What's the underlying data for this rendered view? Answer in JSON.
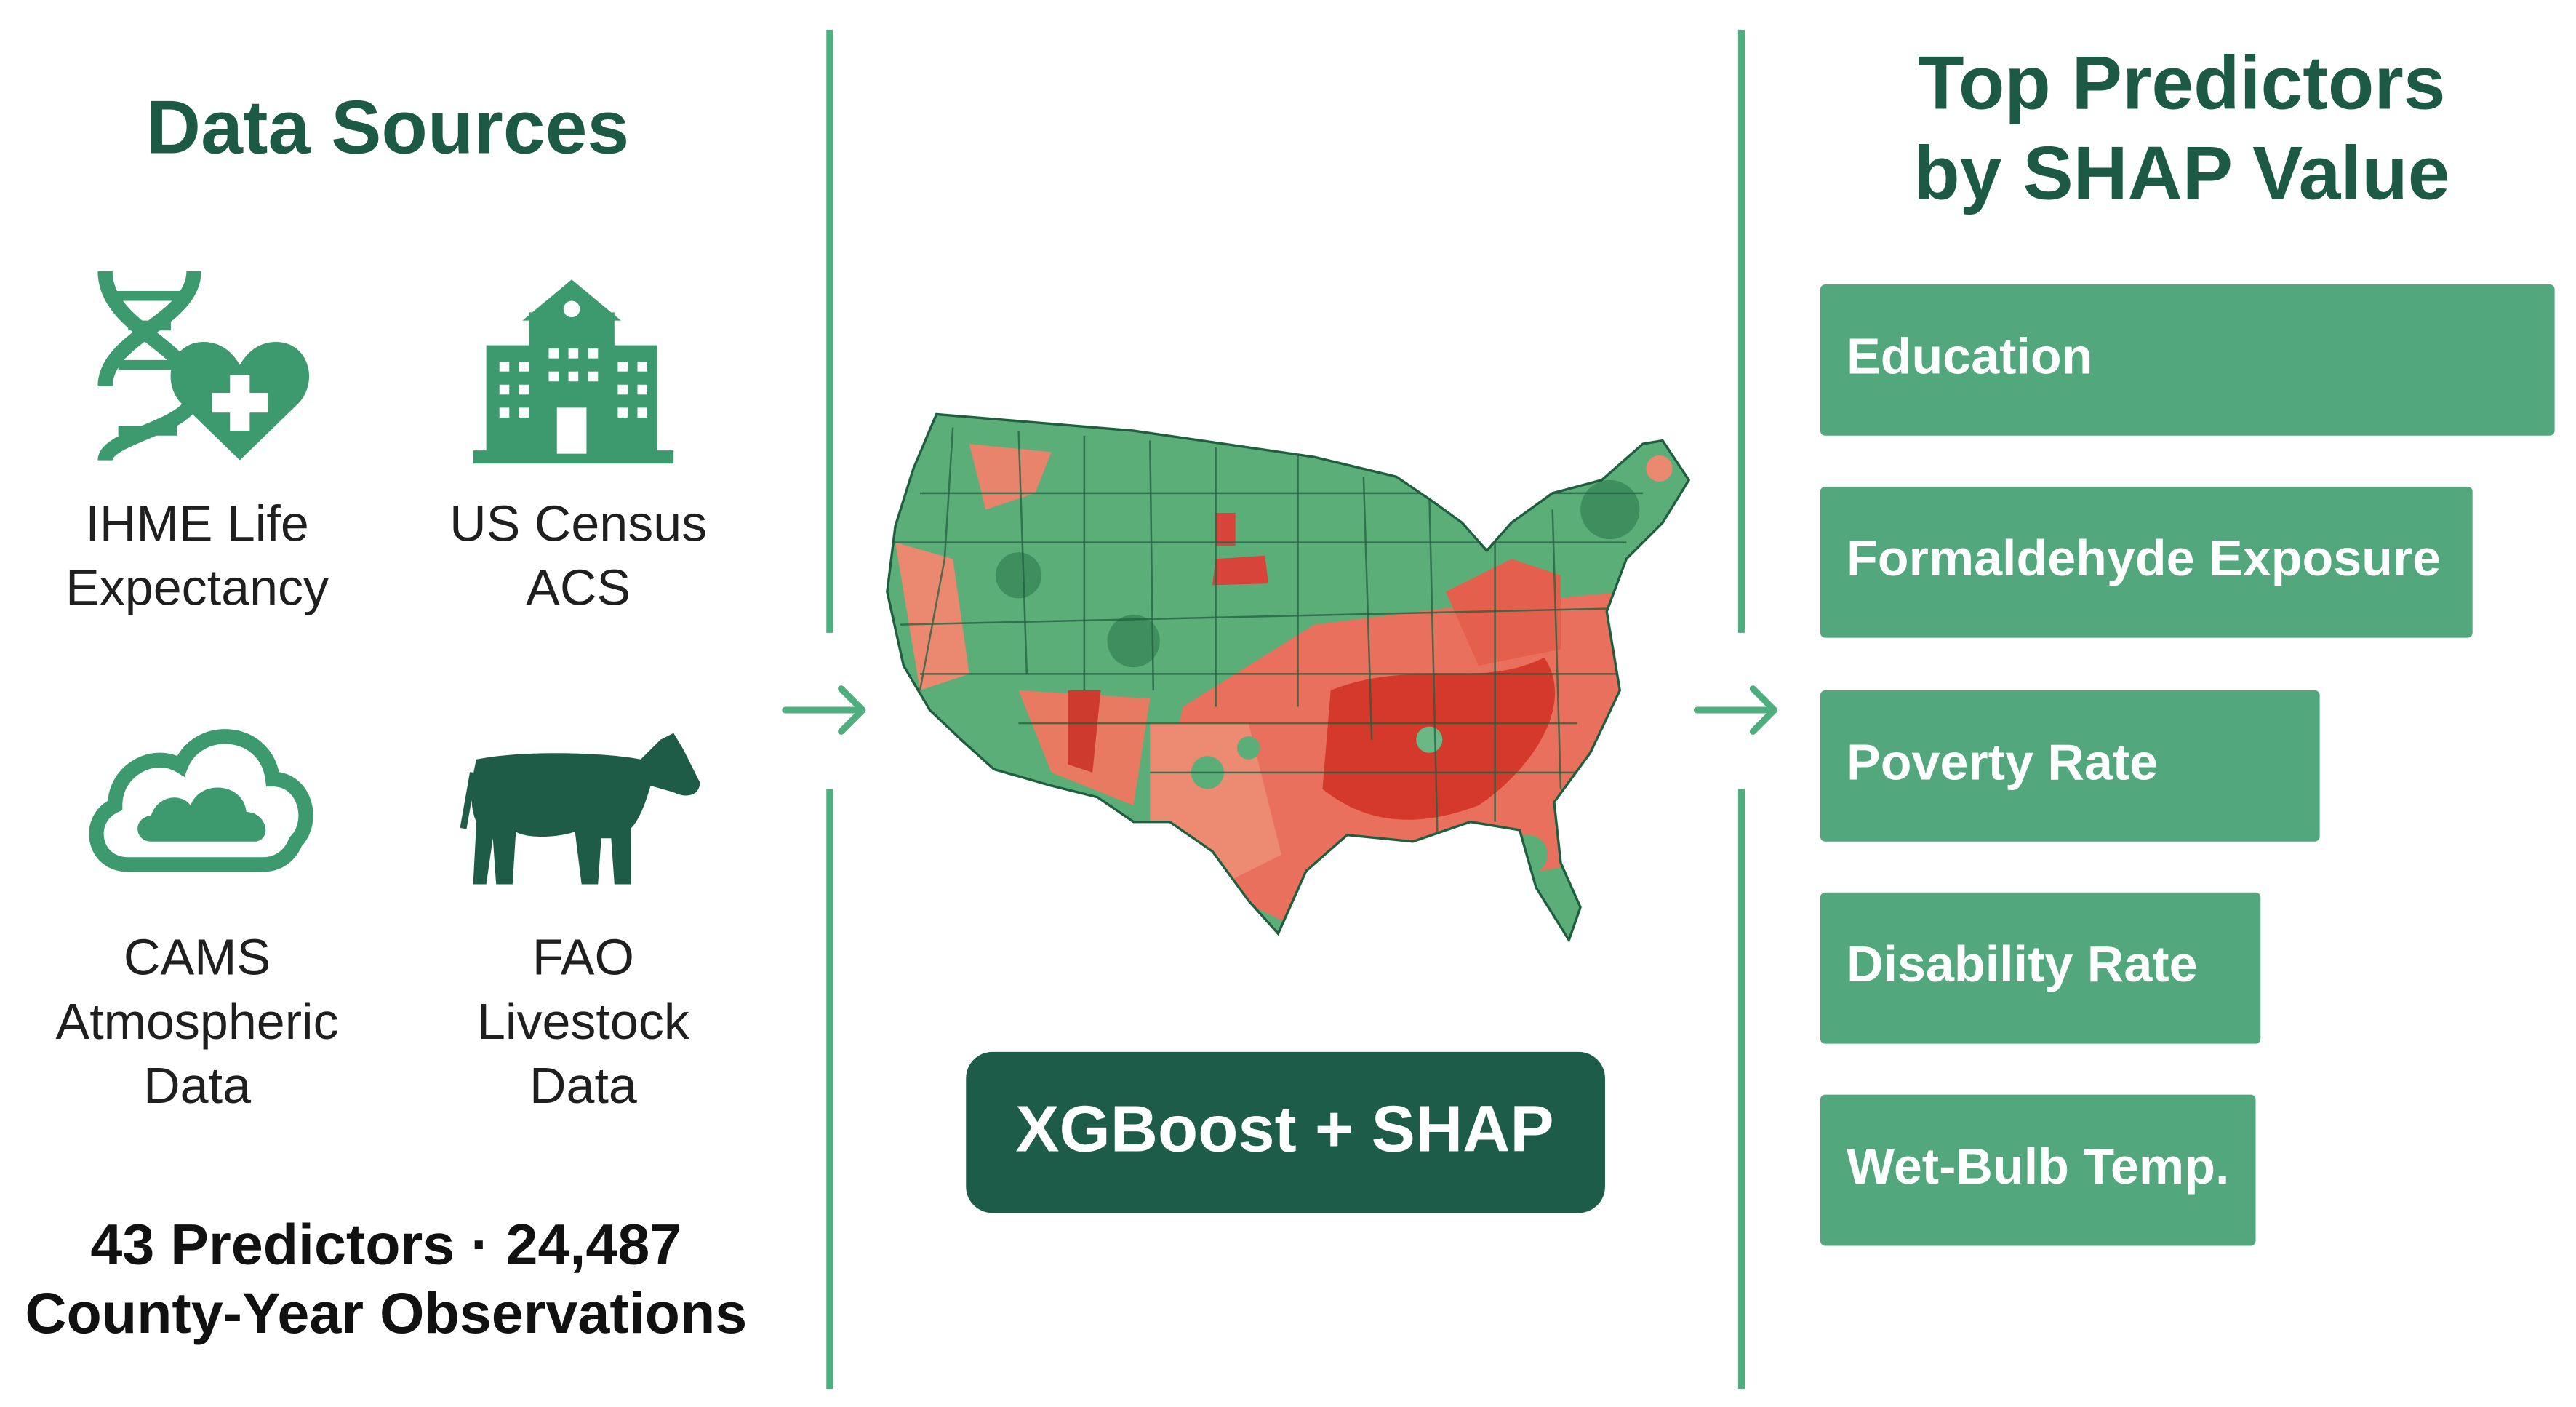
{
  "left": {
    "title": "Data Sources",
    "sources": [
      {
        "label": [
          "IHME Life",
          "Expectancy"
        ]
      },
      {
        "label": [
          "US Census",
          "ACS"
        ]
      },
      {
        "label": [
          "CAMS",
          "Atmospheric",
          "Data"
        ]
      },
      {
        "label": [
          "FAO",
          "Livestock",
          "Data"
        ]
      }
    ],
    "summary": [
      "43 Predictors · 24,487",
      "County-Year Observations"
    ]
  },
  "center": {
    "model": "XGBoost + SHAP"
  },
  "right": {
    "title": [
      "Top Predictors",
      "by SHAP Value"
    ],
    "predictors": [
      "Education",
      "Formaldehyde Exposure",
      "Poverty Rate",
      "Disability Rate",
      "Wet-Bulb Temp."
    ]
  }
}
